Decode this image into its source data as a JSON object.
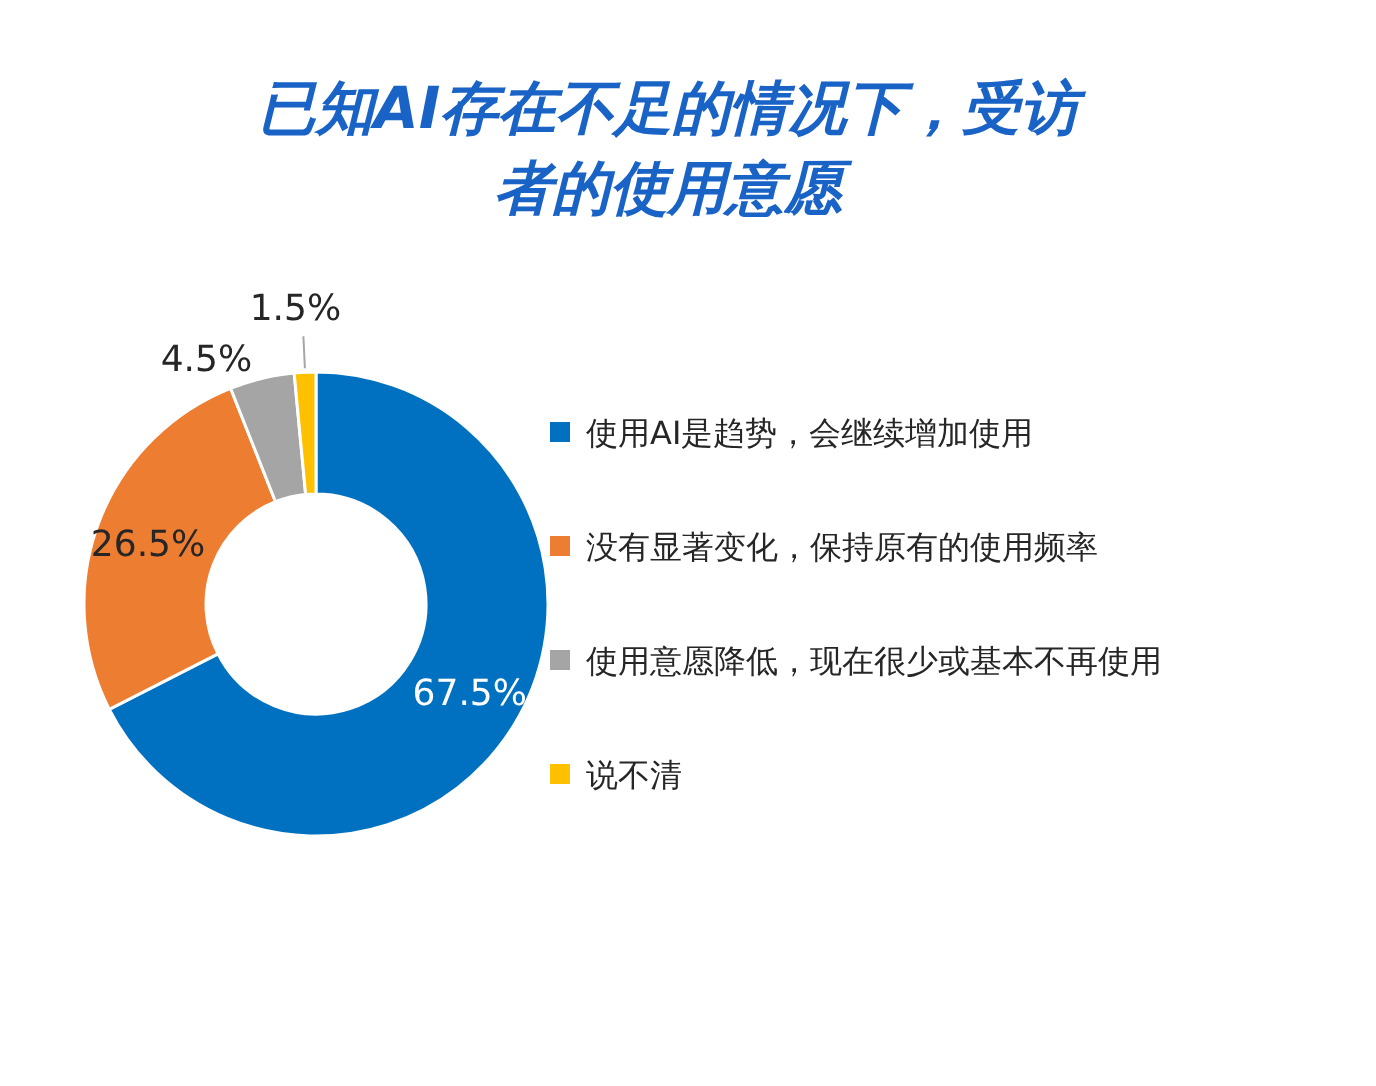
{
  "chart_data": {
    "type": "donut",
    "title": "已知AI存在不足的情况下，受访者的使用意愿",
    "categories": [
      "使用AI是趋势，会继续增加使用",
      "没有显著变化，保持原有的使用频率",
      "使用意愿降低，现在很少或基本不再使用",
      "说不清"
    ],
    "values": [
      67.5,
      26.5,
      4.5,
      1.5
    ],
    "colors": [
      "#0070c0",
      "#ed7d31",
      "#a5a5a5",
      "#ffc000"
    ],
    "value_labels": [
      "67.5%",
      "26.5%",
      "4.5%",
      "1.5%"
    ],
    "legend": "right"
  }
}
